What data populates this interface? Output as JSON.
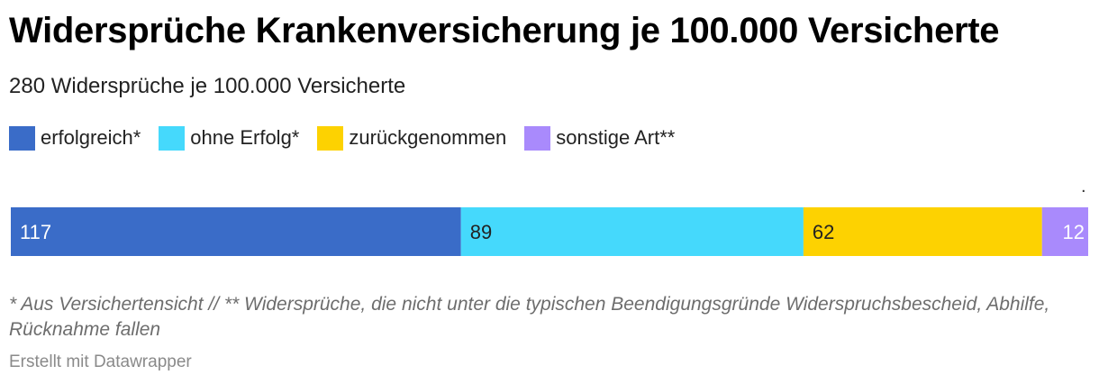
{
  "header": {
    "title": "Widersprüche Krankenversicherung je 100.000 Versicherte",
    "subtitle": "280 Widersprüche je 100.000 Versicherte"
  },
  "chart_data": {
    "type": "bar",
    "orientation": "horizontal",
    "stacked": true,
    "title": "Widersprüche Krankenversicherung je 100.000 Versicherte",
    "subtitle": "280 Widersprüche je 100.000 Versicherte",
    "total": 280,
    "legend_position": "top-left",
    "grid": false,
    "series": [
      {
        "name": "erfolgreich*",
        "value": 117,
        "color": "#3a6cc8"
      },
      {
        "name": "ohne Erfolg*",
        "value": 89,
        "color": "#45d9fc"
      },
      {
        "name": "zurückgenommen",
        "value": 62,
        "color": "#fdd201"
      },
      {
        "name": "sonstige Art**",
        "value": 12,
        "color": "#a98afc"
      }
    ],
    "marker": "."
  },
  "notes": {
    "footnote": "* Aus Versichertensicht // ** Widersprüche, die nicht unter die typischen Beendigungsgründe Widerspruchsbescheid, Abhilfe, Rücknahme fallen",
    "credit": "Erstellt mit Datawrapper"
  },
  "colors": {
    "label_light": "#ffffff",
    "label_dark": "#222222"
  }
}
